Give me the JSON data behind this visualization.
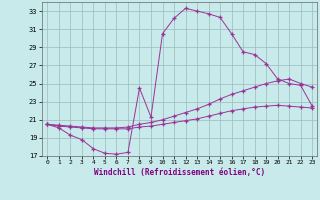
{
  "xlabel": "Windchill (Refroidissement éolien,°C)",
  "background_color": "#c8eaea",
  "grid_color": "#9bbcbc",
  "line_color": "#993399",
  "xlim_min": -0.5,
  "xlim_max": 23.4,
  "ylim_min": 17,
  "ylim_max": 34,
  "xticks": [
    0,
    1,
    2,
    3,
    4,
    5,
    6,
    7,
    8,
    9,
    10,
    11,
    12,
    13,
    14,
    15,
    16,
    17,
    18,
    19,
    20,
    21,
    22,
    23
  ],
  "yticks": [
    17,
    19,
    21,
    23,
    25,
    27,
    29,
    31,
    33
  ],
  "line1_x": [
    0,
    1,
    2,
    3,
    4,
    5,
    6,
    7,
    8,
    9,
    10,
    11,
    12,
    13,
    14,
    15,
    16,
    17,
    18,
    19,
    20,
    21,
    22,
    23
  ],
  "line1_y": [
    20.5,
    20.1,
    19.3,
    18.8,
    17.8,
    17.3,
    17.2,
    17.4,
    24.5,
    21.3,
    30.5,
    32.2,
    33.3,
    33.0,
    32.7,
    32.3,
    30.5,
    28.5,
    28.2,
    27.2,
    25.5,
    25.0,
    24.8,
    22.5
  ],
  "line2_x": [
    0,
    1,
    2,
    3,
    4,
    5,
    6,
    7,
    8,
    9,
    10,
    11,
    12,
    13,
    14,
    15,
    16,
    17,
    18,
    19,
    20,
    21,
    22,
    23
  ],
  "line2_y": [
    20.5,
    20.3,
    20.2,
    20.1,
    20.0,
    20.0,
    20.0,
    20.0,
    20.2,
    20.3,
    20.5,
    20.7,
    20.9,
    21.1,
    21.4,
    21.7,
    22.0,
    22.2,
    22.4,
    22.5,
    22.6,
    22.5,
    22.4,
    22.3
  ],
  "line3_x": [
    0,
    1,
    2,
    3,
    4,
    5,
    6,
    7,
    8,
    9,
    10,
    11,
    12,
    13,
    14,
    15,
    16,
    17,
    18,
    19,
    20,
    21,
    22,
    23
  ],
  "line3_y": [
    20.5,
    20.4,
    20.3,
    20.2,
    20.1,
    20.1,
    20.1,
    20.2,
    20.5,
    20.7,
    21.0,
    21.4,
    21.8,
    22.2,
    22.7,
    23.3,
    23.8,
    24.2,
    24.6,
    25.0,
    25.3,
    25.5,
    25.0,
    24.6
  ]
}
